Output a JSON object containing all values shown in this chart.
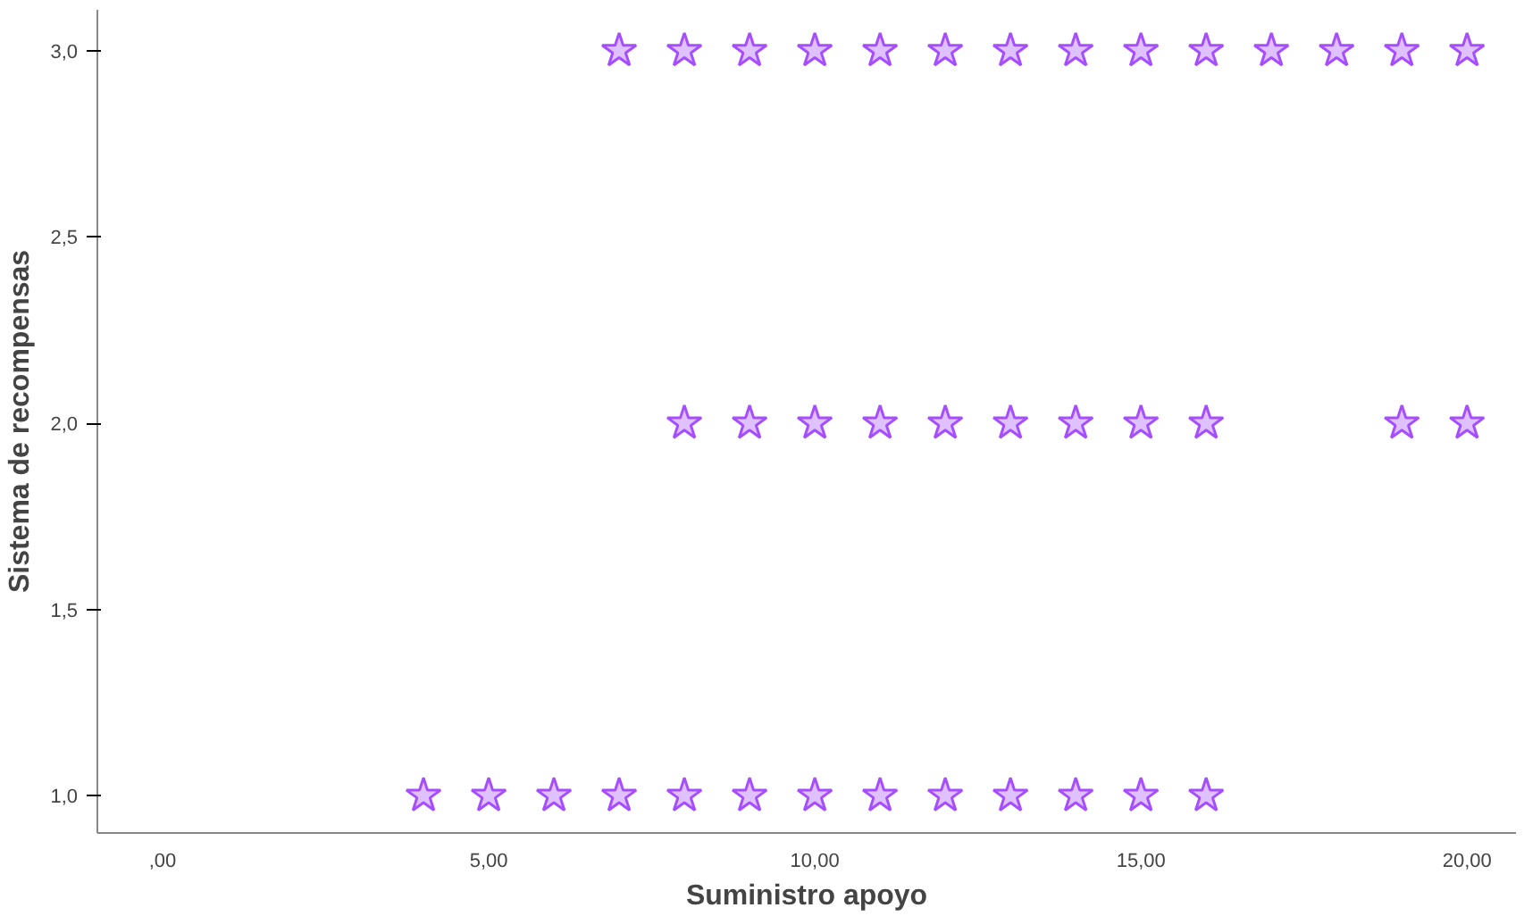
{
  "chart_data": {
    "type": "scatter",
    "xlabel": "Suministro apoyo",
    "ylabel": "Sistema de recompensas",
    "series": [
      {
        "color": "#a64dff",
        "x": [
          7,
          8,
          9,
          10,
          11,
          12,
          13,
          14,
          15,
          16,
          17,
          18,
          19,
          20,
          8,
          9,
          10,
          11,
          12,
          13,
          14,
          15,
          16,
          19,
          20,
          4,
          5,
          6,
          7,
          8,
          9,
          10,
          11,
          12,
          13,
          14,
          15,
          16
        ],
        "values": [
          3,
          3,
          3,
          3,
          3,
          3,
          3,
          3,
          3,
          3,
          3,
          3,
          3,
          3,
          2,
          2,
          2,
          2,
          2,
          2,
          2,
          2,
          2,
          2,
          2,
          1,
          1,
          1,
          1,
          1,
          1,
          1,
          1,
          1,
          1,
          1,
          1,
          1
        ]
      }
    ],
    "xlim": [
      -1,
      20.75
    ],
    "ylim": [
      0.9,
      3.11
    ],
    "xticks": [
      {
        "value": 0,
        "label": ",00"
      },
      {
        "value": 5,
        "label": "5,00"
      },
      {
        "value": 10,
        "label": "10,00"
      },
      {
        "value": 15,
        "label": "15,00"
      },
      {
        "value": 20,
        "label": "20,00"
      }
    ],
    "yticks": [
      {
        "value": 1,
        "label": "1,0"
      },
      {
        "value": 1.5,
        "label": "1,5"
      },
      {
        "value": 2,
        "label": "2,0"
      },
      {
        "value": 2.5,
        "label": "2,5"
      },
      {
        "value": 3,
        "label": "3,0"
      }
    ],
    "marker": "star"
  }
}
